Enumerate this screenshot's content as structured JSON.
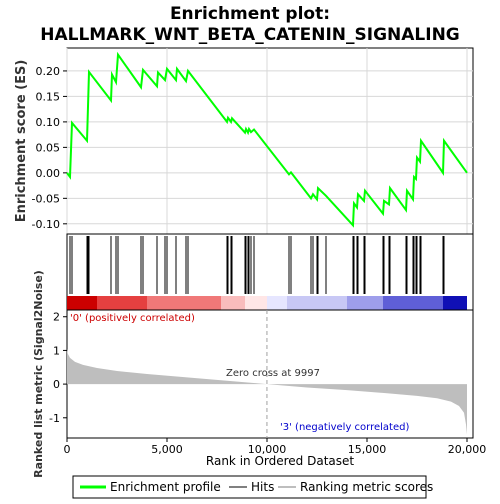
{
  "chart_data": {
    "type": "line",
    "title": "Enrichment plot:\nHALLMARK_WNT_BETA_CATENIN_SIGNALING",
    "title_lines": [
      "Enrichment plot:",
      "HALLMARK_WNT_BETA_CATENIN_SIGNALING"
    ],
    "es_panel": {
      "ylabel": "Enrichment score (ES)",
      "ylim": [
        -0.12,
        0.245
      ],
      "yticks": [
        -0.1,
        -0.05,
        0.0,
        0.05,
        0.1,
        0.15,
        0.2
      ],
      "ytick_labels": [
        "-0.10",
        "-0.05",
        "0.00",
        "0.05",
        "0.10",
        "0.15",
        "0.20"
      ],
      "grid": true,
      "series_name": "Enrichment profile",
      "color": "#00ff00",
      "points": [
        [
          0,
          0
        ],
        [
          150,
          -0.008
        ],
        [
          250,
          0.098
        ],
        [
          1000,
          0.063
        ],
        [
          1050,
          0.13
        ],
        [
          1100,
          0.198
        ],
        [
          2200,
          0.142
        ],
        [
          2250,
          0.193
        ],
        [
          2450,
          0.178
        ],
        [
          2550,
          0.232
        ],
        [
          3700,
          0.168
        ],
        [
          3800,
          0.202
        ],
        [
          4500,
          0.17
        ],
        [
          4550,
          0.197
        ],
        [
          4900,
          0.182
        ],
        [
          5000,
          0.204
        ],
        [
          5450,
          0.182
        ],
        [
          5500,
          0.204
        ],
        [
          5950,
          0.18
        ],
        [
          6050,
          0.2
        ],
        [
          8000,
          0.1
        ],
        [
          8050,
          0.108
        ],
        [
          8200,
          0.1
        ],
        [
          8250,
          0.107
        ],
        [
          8900,
          0.079
        ],
        [
          8950,
          0.086
        ],
        [
          9050,
          0.079
        ],
        [
          9100,
          0.086
        ],
        [
          9200,
          0.08
        ],
        [
          9350,
          0.085
        ],
        [
          11100,
          -0.003
        ],
        [
          11200,
          0.001
        ],
        [
          12200,
          -0.05
        ],
        [
          12300,
          -0.042
        ],
        [
          12500,
          -0.052
        ],
        [
          12550,
          -0.03
        ],
        [
          12950,
          -0.045
        ],
        [
          14300,
          -0.103
        ],
        [
          14350,
          -0.06
        ],
        [
          14500,
          -0.068
        ],
        [
          14550,
          -0.042
        ],
        [
          14850,
          -0.055
        ],
        [
          14900,
          -0.035
        ],
        [
          15800,
          -0.08
        ],
        [
          15850,
          -0.055
        ],
        [
          16100,
          -0.062
        ],
        [
          16150,
          -0.03
        ],
        [
          16950,
          -0.073
        ],
        [
          17000,
          -0.035
        ],
        [
          17300,
          -0.052
        ],
        [
          17350,
          -0.008
        ],
        [
          17450,
          -0.012
        ],
        [
          17500,
          0.03
        ],
        [
          17650,
          0.022
        ],
        [
          17700,
          0.063
        ],
        [
          18800,
          0.0
        ],
        [
          18850,
          0.063
        ],
        [
          20000,
          0.0
        ]
      ]
    },
    "hits": [
      150,
      250,
      1000,
      1050,
      1100,
      2200,
      2450,
      2550,
      3700,
      3800,
      4500,
      4900,
      5000,
      5450,
      5950,
      6050,
      8000,
      8050,
      8200,
      8250,
      8900,
      8950,
      9050,
      9100,
      9200,
      9350,
      11100,
      11200,
      12200,
      12300,
      12500,
      12550,
      12950,
      14300,
      14350,
      14500,
      14550,
      14850,
      14900,
      15800,
      15850,
      16100,
      16150,
      16950,
      17000,
      17300,
      17350,
      17450,
      17500,
      17650,
      17700,
      18800,
      18850
    ],
    "color_band": {
      "segments": [
        {
          "from": 0,
          "to": 1500,
          "color": "#cc0000"
        },
        {
          "from": 1500,
          "to": 4000,
          "color": "#e54040"
        },
        {
          "from": 4000,
          "to": 7700,
          "color": "#f07878"
        },
        {
          "from": 7700,
          "to": 8900,
          "color": "#f9bcbc"
        },
        {
          "from": 8900,
          "to": 10000,
          "color": "#ffe6e6"
        },
        {
          "from": 10000,
          "to": 11000,
          "color": "#e6e6ff"
        },
        {
          "from": 11000,
          "to": 14000,
          "color": "#c8c8f5"
        },
        {
          "from": 14000,
          "to": 15800,
          "color": "#9e9eeb"
        },
        {
          "from": 15800,
          "to": 18800,
          "color": "#5f5fd7"
        },
        {
          "from": 18800,
          "to": 20000,
          "color": "#1010b5"
        }
      ]
    },
    "rank_panel": {
      "ylabel": "Ranked list metric (Signal2Noise)",
      "ylim": [
        -1.6,
        2.2
      ],
      "yticks": [
        -1,
        0,
        1,
        2
      ],
      "ytick_labels": [
        "-1",
        "0",
        "1",
        "2"
      ],
      "positive_label": "'0' (positively correlated)",
      "negative_label": "'3' (negatively correlated)",
      "zero_cross_label": "Zero cross at 9997",
      "zero_cross": 9997,
      "metric_points": [
        [
          0,
          1.05
        ],
        [
          40,
          0.9
        ],
        [
          150,
          0.78
        ],
        [
          400,
          0.66
        ],
        [
          800,
          0.57
        ],
        [
          1500,
          0.48
        ],
        [
          2500,
          0.39
        ],
        [
          4000,
          0.3
        ],
        [
          6000,
          0.2
        ],
        [
          8000,
          0.1
        ],
        [
          9997,
          0.0
        ],
        [
          12000,
          -0.1
        ],
        [
          14000,
          -0.18
        ],
        [
          16000,
          -0.27
        ],
        [
          17500,
          -0.35
        ],
        [
          18500,
          -0.42
        ],
        [
          19200,
          -0.52
        ],
        [
          19600,
          -0.65
        ],
        [
          19850,
          -0.85
        ],
        [
          19950,
          -1.2
        ],
        [
          20000,
          -1.5
        ]
      ]
    },
    "xaxis": {
      "xlabel": "Rank in Ordered Dataset",
      "xlim": [
        0,
        20300
      ],
      "xticks": [
        0,
        5000,
        10000,
        15000,
        20000
      ],
      "xtick_labels": [
        "0",
        "5,000",
        "10,000",
        "15,000",
        "20,000"
      ]
    },
    "legend": {
      "placement": "bottom",
      "items": [
        {
          "label": "Enrichment profile",
          "color": "#00ff00"
        },
        {
          "label": "Hits",
          "color": "#000000"
        },
        {
          "label": "Ranking metric scores",
          "color": "#bebebe"
        }
      ]
    }
  }
}
